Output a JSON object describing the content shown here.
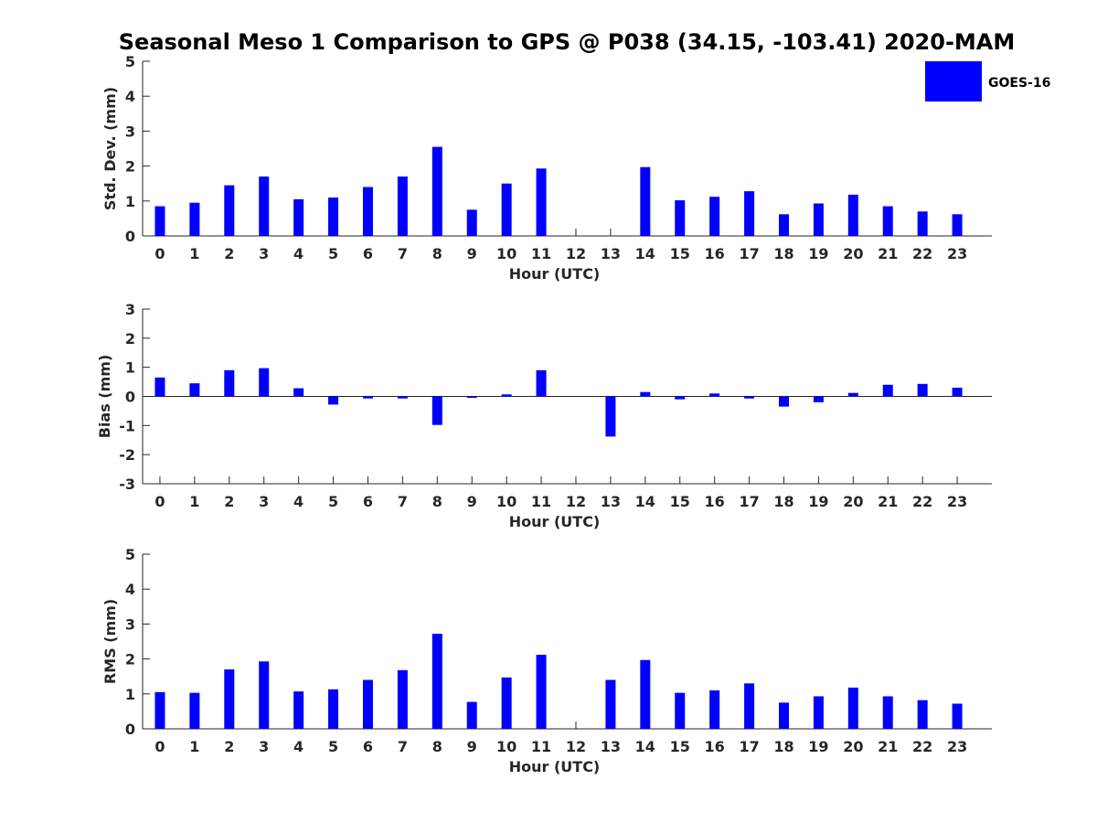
{
  "title": "Seasonal Meso 1 Comparison to GPS @ P038 (34.15, -103.41) 2020-MAM",
  "legend": {
    "label": "GOES-16",
    "color": "#0000ff",
    "placement": "top-right"
  },
  "chart_data": [
    {
      "type": "bar",
      "xlabel": "Hour (UTC)",
      "ylabel": "Std. Dev. (mm)",
      "ylim": [
        0,
        5
      ],
      "yticks": [
        "0",
        "1",
        "2",
        "3",
        "4",
        "5"
      ],
      "categories": [
        "0",
        "1",
        "2",
        "3",
        "4",
        "5",
        "6",
        "7",
        "8",
        "9",
        "10",
        "11",
        "12",
        "13",
        "14",
        "15",
        "16",
        "17",
        "18",
        "19",
        "20",
        "21",
        "22",
        "23"
      ],
      "series": [
        {
          "name": "GOES-16",
          "values": [
            0.85,
            0.95,
            1.45,
            1.7,
            1.05,
            1.1,
            1.4,
            1.7,
            2.55,
            0.75,
            1.5,
            1.93,
            null,
            null,
            1.97,
            1.02,
            1.12,
            1.28,
            0.62,
            0.93,
            1.18,
            0.85,
            0.7,
            0.62
          ]
        }
      ],
      "grid": false
    },
    {
      "type": "bar",
      "xlabel": "Hour (UTC)",
      "ylabel": "Bias (mm)",
      "ylim": [
        -3,
        3
      ],
      "yticks": [
        "-3",
        "-2",
        "-1",
        "0",
        "1",
        "2",
        "3"
      ],
      "categories": [
        "0",
        "1",
        "2",
        "3",
        "4",
        "5",
        "6",
        "7",
        "8",
        "9",
        "10",
        "11",
        "12",
        "13",
        "14",
        "15",
        "16",
        "17",
        "18",
        "19",
        "20",
        "21",
        "22",
        "23"
      ],
      "series": [
        {
          "name": "GOES-16",
          "values": [
            0.65,
            0.45,
            0.9,
            0.97,
            0.28,
            -0.28,
            -0.07,
            -0.07,
            -0.98,
            -0.05,
            0.07,
            0.9,
            null,
            -1.38,
            0.15,
            -0.1,
            0.1,
            -0.07,
            -0.35,
            -0.2,
            0.12,
            0.4,
            0.43,
            0.3
          ]
        }
      ],
      "grid": false
    },
    {
      "type": "bar",
      "xlabel": "Hour (UTC)",
      "ylabel": "RMS (mm)",
      "ylim": [
        0,
        5
      ],
      "yticks": [
        "0",
        "1",
        "2",
        "3",
        "4",
        "5"
      ],
      "categories": [
        "0",
        "1",
        "2",
        "3",
        "4",
        "5",
        "6",
        "7",
        "8",
        "9",
        "10",
        "11",
        "12",
        "13",
        "14",
        "15",
        "16",
        "17",
        "18",
        "19",
        "20",
        "21",
        "22",
        "23"
      ],
      "series": [
        {
          "name": "GOES-16",
          "values": [
            1.05,
            1.03,
            1.7,
            1.93,
            1.07,
            1.13,
            1.4,
            1.68,
            2.72,
            0.77,
            1.47,
            2.12,
            null,
            1.4,
            1.97,
            1.03,
            1.1,
            1.3,
            0.75,
            0.93,
            1.18,
            0.93,
            0.82,
            0.72
          ]
        }
      ],
      "grid": false
    }
  ]
}
